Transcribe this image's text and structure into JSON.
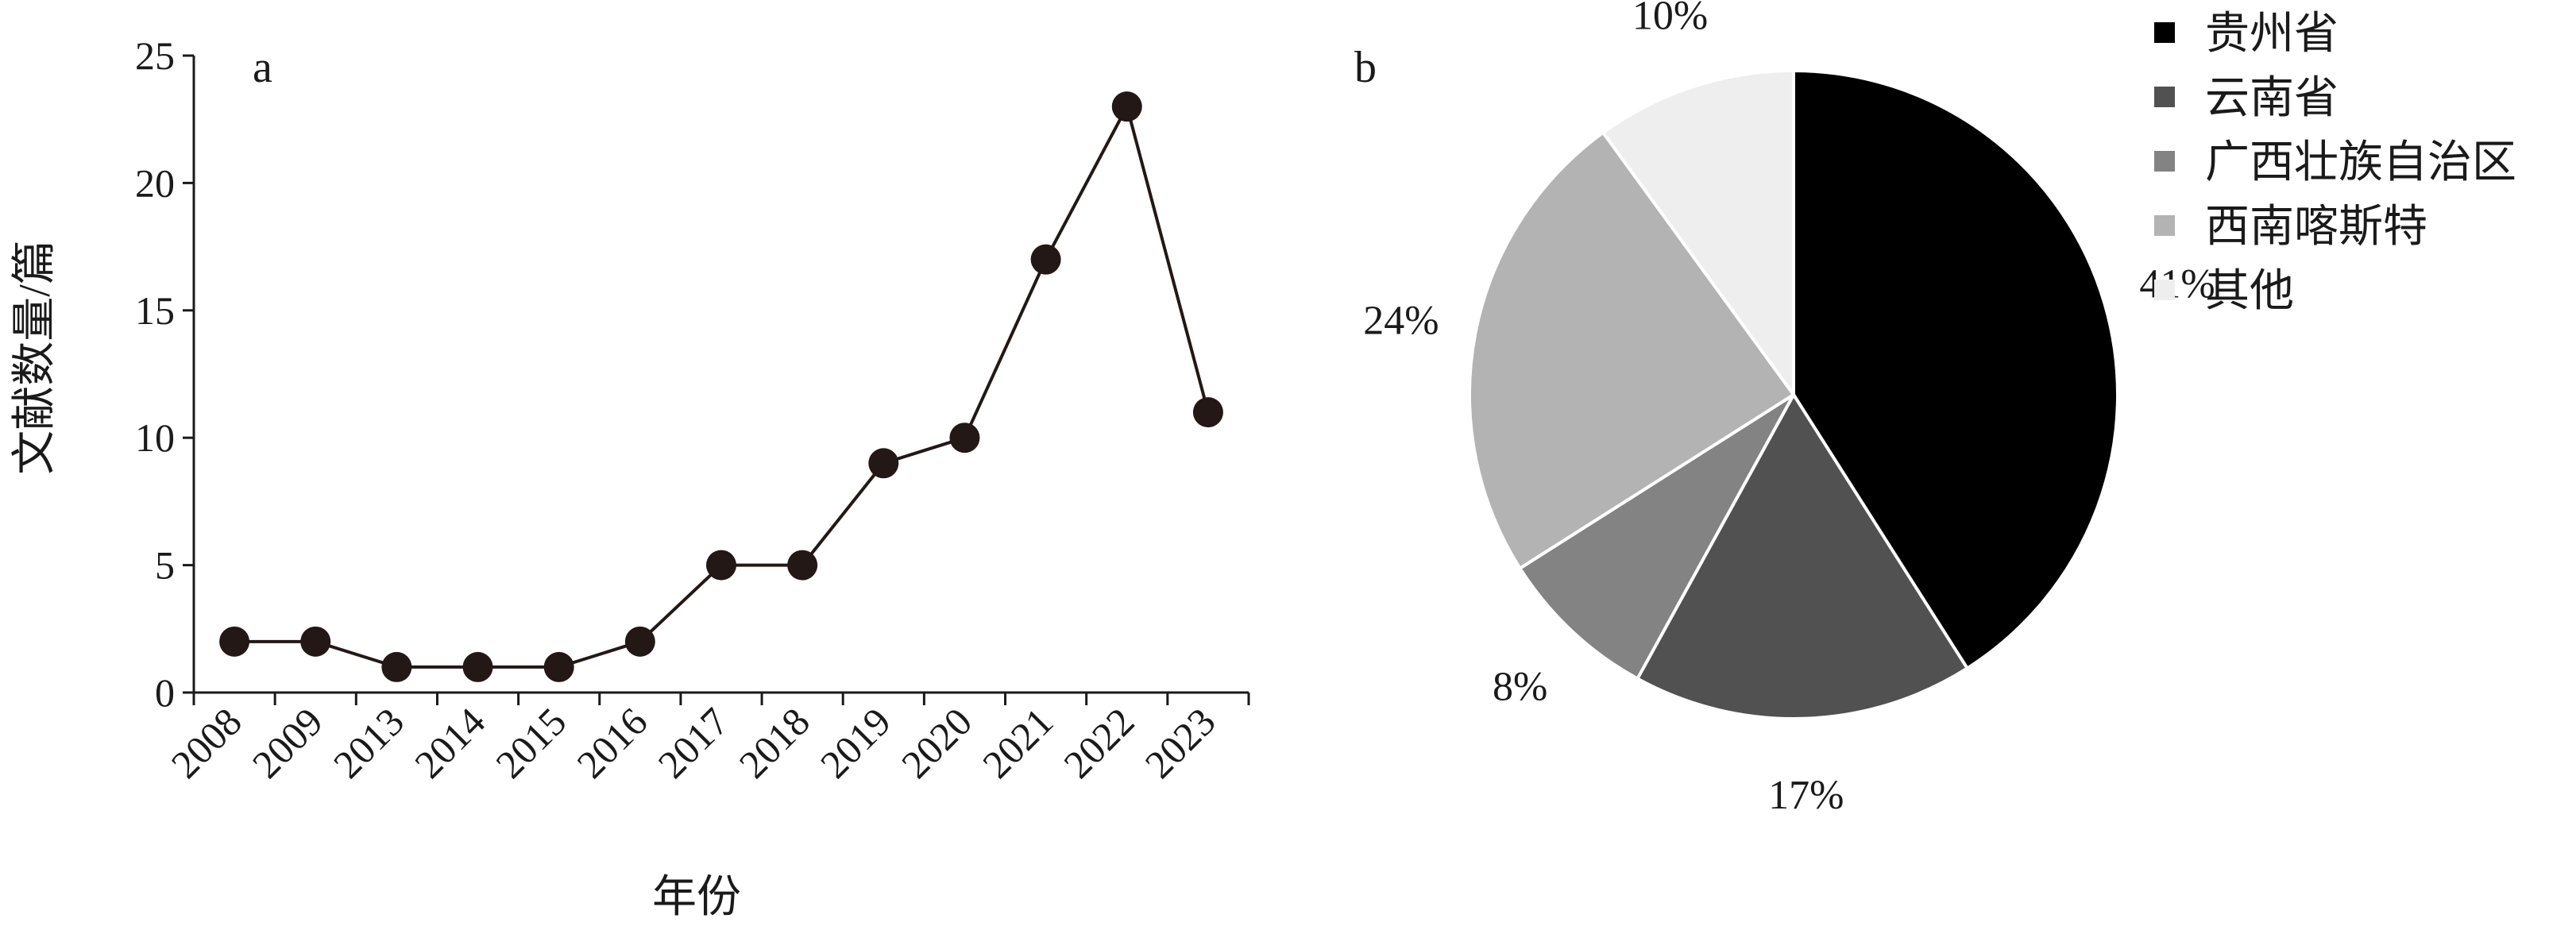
{
  "chart_data": [
    {
      "type": "line",
      "panel_label": "a",
      "xlabel": "年份",
      "ylabel": "文献数量/篇",
      "categories": [
        "2008",
        "2009",
        "2013",
        "2014",
        "2015",
        "2016",
        "2017",
        "2018",
        "2019",
        "2020",
        "2021",
        "2022",
        "2023"
      ],
      "series": [
        {
          "values": [
            2,
            2,
            1,
            1,
            1,
            2,
            5,
            5,
            9,
            10,
            17,
            23,
            11
          ]
        }
      ],
      "ylim": [
        0,
        25
      ],
      "yticks": [
        "0",
        "5",
        "10",
        "15",
        "20",
        "25"
      ],
      "grid": false,
      "marker_color": "#231815",
      "line_color": "#231815"
    },
    {
      "type": "pie",
      "panel_label": "b",
      "slices": [
        {
          "label": "贵州省",
          "value": 41,
          "text": "41%",
          "color": "#000000"
        },
        {
          "label": "云南省",
          "value": 17,
          "text": "17%",
          "color": "#515151"
        },
        {
          "label": "广西壮族自治区",
          "value": 8,
          "text": "8%",
          "color": "#838383"
        },
        {
          "label": "西南喀斯特",
          "value": 24,
          "text": "24%",
          "color": "#b3b3b3"
        },
        {
          "label": "其他",
          "value": 10,
          "text": "10%",
          "color": "#eeeeee"
        }
      ],
      "legend_position": "top-right"
    }
  ]
}
